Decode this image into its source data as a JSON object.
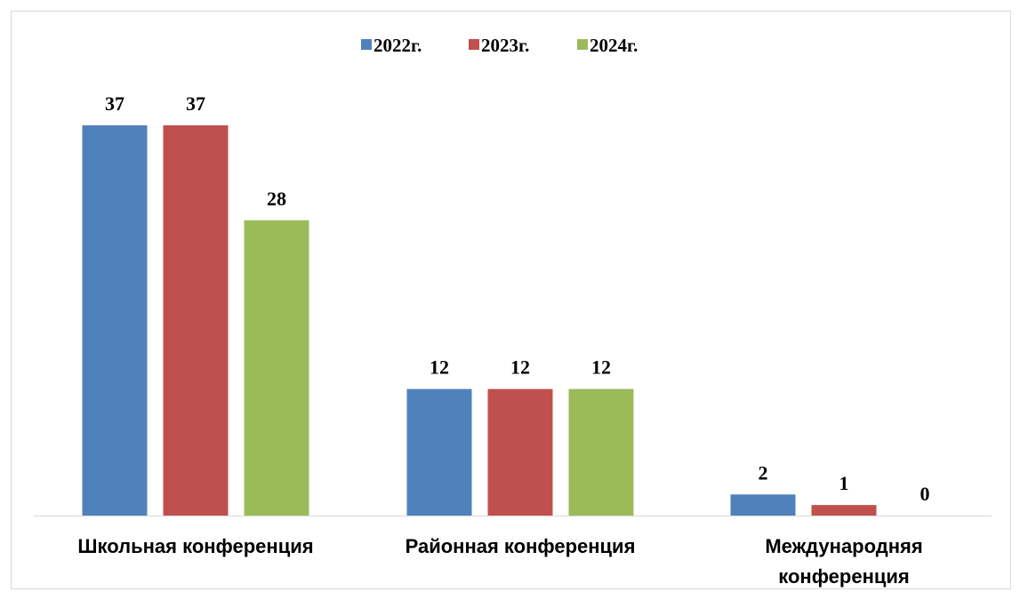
{
  "chart_data": {
    "type": "bar",
    "title": "",
    "xlabel": "",
    "ylabel": "",
    "categories": [
      "Школьная конференция",
      "Районная конференция",
      "Международняя конференция"
    ],
    "category_lines": [
      [
        "Школьная конференция"
      ],
      [
        "Районная конференция"
      ],
      [
        "Международняя",
        "конференция"
      ]
    ],
    "series": [
      {
        "name": "2022г.",
        "color": "#4F81BD",
        "values": [
          37,
          12,
          2
        ]
      },
      {
        "name": "2023г.",
        "color": "#C0504D",
        "values": [
          37,
          12,
          1
        ]
      },
      {
        "name": "2024г.",
        "color": "#9BBB59",
        "values": [
          28,
          12,
          0
        ]
      }
    ],
    "ylim": [
      0,
      37
    ],
    "grid": false,
    "legend_position": "top-center",
    "data_labels": true
  }
}
